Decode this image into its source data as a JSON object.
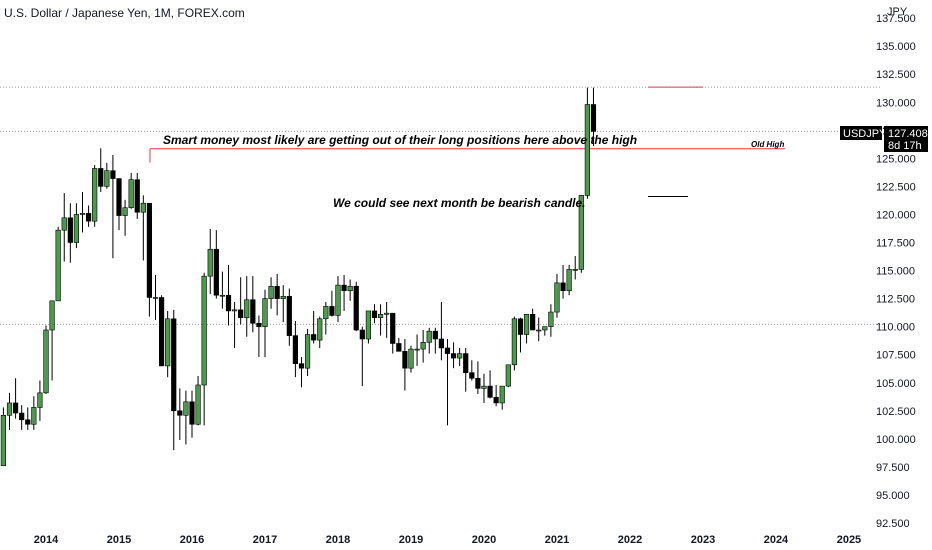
{
  "chart_data": {
    "type": "candlestick",
    "title": "U.S. Dollar / Japanese Yen, 1M, FOREX.com",
    "currency": "JPY",
    "ylim": [
      92.5,
      137.5
    ],
    "y_ticks": [
      "92.500",
      "95.000",
      "97.500",
      "100.000",
      "102.500",
      "105.000",
      "107.500",
      "110.000",
      "112.500",
      "115.000",
      "117.500",
      "120.000",
      "122.500",
      "125.000",
      "127.500",
      "130.000",
      "132.500",
      "135.000",
      "137.500"
    ],
    "x_ticks": [
      {
        "label": "2014",
        "t": 0
      },
      {
        "label": "2015",
        "t": 12
      },
      {
        "label": "2016",
        "t": 24
      },
      {
        "label": "2017",
        "t": 36
      },
      {
        "label": "2018",
        "t": 48
      },
      {
        "label": "2019",
        "t": 60
      },
      {
        "label": "2020",
        "t": 72
      },
      {
        "label": "2021",
        "t": 84
      },
      {
        "label": "2022",
        "t": 96
      },
      {
        "label": "2023",
        "t": 108
      },
      {
        "label": "2024",
        "t": 120
      },
      {
        "label": "2025",
        "t": 132
      }
    ],
    "candles_ohlc": [
      [
        100.5,
        102.7,
        95.0,
        97.6
      ],
      [
        97.6,
        102.8,
        100.8,
        102.1
      ],
      [
        102.1,
        104.1,
        100.8,
        103.2
      ],
      [
        103.2,
        105.4,
        101.8,
        102.3
      ],
      [
        102.3,
        103.0,
        100.8,
        101.7
      ],
      [
        101.7,
        102.8,
        100.8,
        101.3
      ],
      [
        101.3,
        103.8,
        100.8,
        102.8
      ],
      [
        102.8,
        105.2,
        101.6,
        104.1
      ],
      [
        104.1,
        110.1,
        104.0,
        109.7
      ],
      [
        109.7,
        112.0,
        105.2,
        112.3
      ],
      [
        112.3,
        118.9,
        112.4,
        118.6
      ],
      [
        118.6,
        121.9,
        115.8,
        119.7
      ],
      [
        119.7,
        121.0,
        115.7,
        117.5
      ],
      [
        117.5,
        121.0,
        117.0,
        120.0
      ],
      [
        120.0,
        122.0,
        118.4,
        120.1
      ],
      [
        120.1,
        120.8,
        118.9,
        119.4
      ],
      [
        119.4,
        124.4,
        118.9,
        124.1
      ],
      [
        124.1,
        125.9,
        122.0,
        122.5
      ],
      [
        122.5,
        124.6,
        122.3,
        123.9
      ],
      [
        123.9,
        125.3,
        116.1,
        123.2
      ],
      [
        123.2,
        121.7,
        118.6,
        119.9
      ],
      [
        119.9,
        121.3,
        118.1,
        120.6
      ],
      [
        120.6,
        123.7,
        120.5,
        123.1
      ],
      [
        123.1,
        123.7,
        119.6,
        120.2
      ],
      [
        120.2,
        121.7,
        115.9,
        121.0
      ],
      [
        121.0,
        121.0,
        110.9,
        112.6
      ],
      [
        112.6,
        114.6,
        110.6,
        112.6
      ],
      [
        112.6,
        112.8,
        107.6,
        106.5
      ],
      [
        106.5,
        111.4,
        105.5,
        110.7
      ],
      [
        110.7,
        111.5,
        99.0,
        102.5
      ],
      [
        102.5,
        104.5,
        99.9,
        102.1
      ],
      [
        102.1,
        104.3,
        99.5,
        103.3
      ],
      [
        103.3,
        104.3,
        100.1,
        101.3
      ],
      [
        101.3,
        105.6,
        101.2,
        104.8
      ],
      [
        104.8,
        114.8,
        101.2,
        114.5
      ],
      [
        114.5,
        118.7,
        112.9,
        116.9
      ],
      [
        116.9,
        118.6,
        112.5,
        112.8
      ],
      [
        112.8,
        114.9,
        111.6,
        112.8
      ],
      [
        112.8,
        115.5,
        110.1,
        111.4
      ],
      [
        111.4,
        112.2,
        108.1,
        111.5
      ],
      [
        111.5,
        114.4,
        110.2,
        110.8
      ],
      [
        110.8,
        114.5,
        109.1,
        112.4
      ],
      [
        112.4,
        114.5,
        109.5,
        110.3
      ],
      [
        110.3,
        111.0,
        107.3,
        110.0
      ],
      [
        110.0,
        113.3,
        107.3,
        112.5
      ],
      [
        112.5,
        114.4,
        111.6,
        113.6
      ],
      [
        113.6,
        114.7,
        111.0,
        112.5
      ],
      [
        112.5,
        113.7,
        110.4,
        112.7
      ],
      [
        112.7,
        113.4,
        108.3,
        109.2
      ],
      [
        109.2,
        110.5,
        105.5,
        106.7
      ],
      [
        106.7,
        107.3,
        104.6,
        106.3
      ],
      [
        106.3,
        109.8,
        105.6,
        109.3
      ],
      [
        109.3,
        111.4,
        108.5,
        108.8
      ],
      [
        108.8,
        110.9,
        108.1,
        110.7
      ],
      [
        110.7,
        112.2,
        109.3,
        111.8
      ],
      [
        111.8,
        113.2,
        110.9,
        111.0
      ],
      [
        111.0,
        114.5,
        110.4,
        113.7
      ],
      [
        113.7,
        114.6,
        111.4,
        113.2
      ],
      [
        113.2,
        114.2,
        112.3,
        113.6
      ],
      [
        113.6,
        114.0,
        109.6,
        109.7
      ],
      [
        109.7,
        110.0,
        104.7,
        108.9
      ],
      [
        108.9,
        111.0,
        108.5,
        111.4
      ],
      [
        111.4,
        112.0,
        110.3,
        110.8
      ],
      [
        110.8,
        112.0,
        109.2,
        111.1
      ],
      [
        111.1,
        112.2,
        109.0,
        111.2
      ],
      [
        111.2,
        111.2,
        107.6,
        108.5
      ],
      [
        108.5,
        109.0,
        107.9,
        107.8
      ],
      [
        107.8,
        108.9,
        104.3,
        106.3
      ],
      [
        106.3,
        108.3,
        105.9,
        108.0
      ],
      [
        108.0,
        109.3,
        106.5,
        108.0
      ],
      [
        108.0,
        109.7,
        106.8,
        108.6
      ],
      [
        108.6,
        109.9,
        107.6,
        109.6
      ],
      [
        109.6,
        109.9,
        107.6,
        108.9
      ],
      [
        108.9,
        112.2,
        107.0,
        108.1
      ],
      [
        108.1,
        108.9,
        101.2,
        107.6
      ],
      [
        107.6,
        108.6,
        106.3,
        107.2
      ],
      [
        107.2,
        108.1,
        106.5,
        107.6
      ],
      [
        107.6,
        108.1,
        104.2,
        105.9
      ],
      [
        105.9,
        107.0,
        105.2,
        105.4
      ],
      [
        105.4,
        106.9,
        104.0,
        104.5
      ],
      [
        104.5,
        105.8,
        103.2,
        104.7
      ],
      [
        104.7,
        106.1,
        103.6,
        103.7
      ],
      [
        103.7,
        104.8,
        102.9,
        103.2
      ],
      [
        103.2,
        104.1,
        102.6,
        104.7
      ],
      [
        104.7,
        106.5,
        104.6,
        106.6
      ],
      [
        106.6,
        110.9,
        106.1,
        110.7
      ],
      [
        110.7,
        110.8,
        107.7,
        109.3
      ],
      [
        109.3,
        110.5,
        108.5,
        111.1
      ],
      [
        111.1,
        111.6,
        110.5,
        109.7
      ],
      [
        109.7,
        110.8,
        108.7,
        109.7
      ],
      [
        109.7,
        110.0,
        109.2,
        110.0
      ],
      [
        110.0,
        112.0,
        109.1,
        111.3
      ],
      [
        111.3,
        114.7,
        110.8,
        113.9
      ],
      [
        113.9,
        115.5,
        112.5,
        113.2
      ],
      [
        113.2,
        115.5,
        112.8,
        115.1
      ],
      [
        115.1,
        116.3,
        114.2,
        115.1
      ],
      [
        115.1,
        116.3,
        114.8,
        121.7
      ],
      [
        121.7,
        131.3,
        121.4,
        129.8
      ],
      [
        129.8,
        131.3,
        126.1,
        127.4
      ]
    ],
    "annotations": {
      "main": "Smart money most likely are getting out of their long positions here above the high",
      "secondary": "We could see next month be bearish candle.",
      "old_high_label": "Old High"
    },
    "levels": {
      "old_high": 125.86,
      "dotted_high": 131.35,
      "dotted_current": 127.408,
      "dotted_low": 110.2,
      "last_candle_low_line": 121.6
    },
    "price_label": {
      "symbol": "USDJPY",
      "price": "127.408",
      "countdown": "8d 17h"
    },
    "colors": {
      "bull": "#4c9a4c",
      "bear": "#000000",
      "old_high_line": "#f23645",
      "dotted": "#9598a1",
      "label_bg": "#000000"
    }
  }
}
